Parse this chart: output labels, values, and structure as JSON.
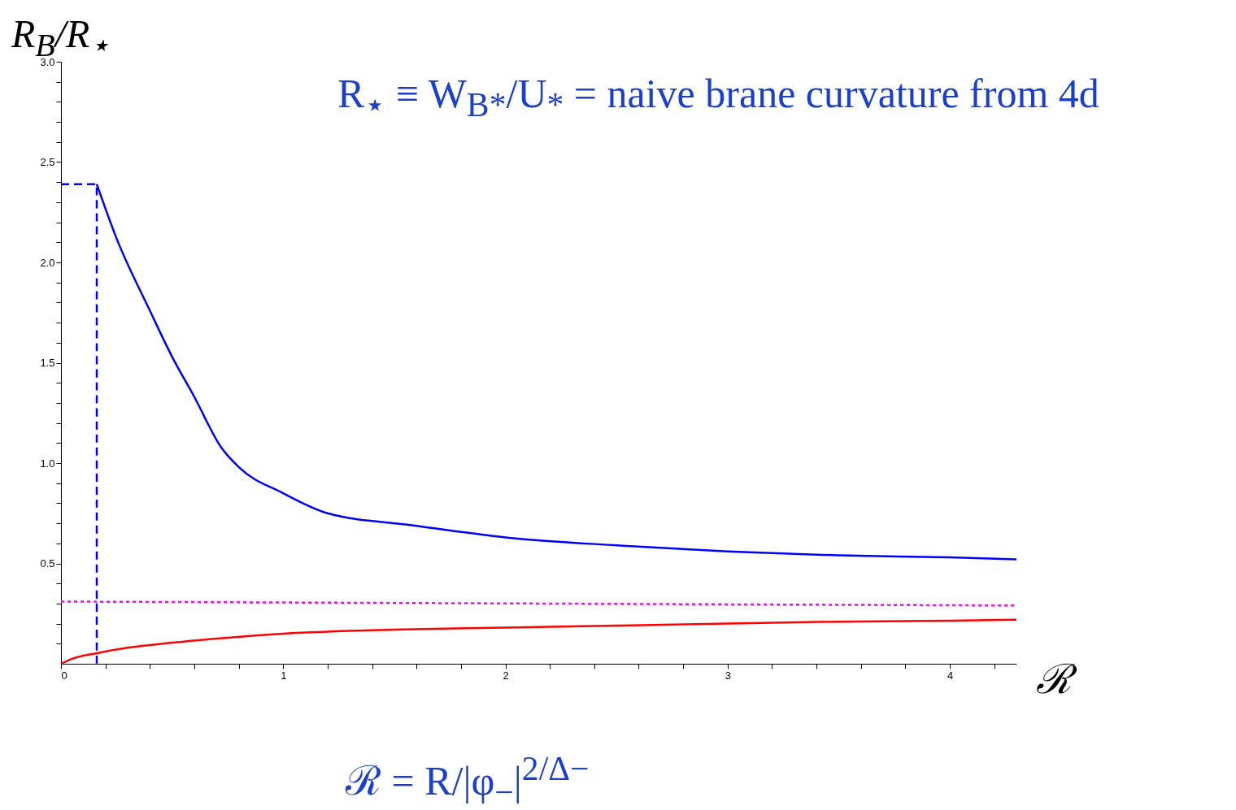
{
  "chart_data": {
    "type": "line",
    "xlabel": "ℛ",
    "ylabel": "R$_{B}$/R$_{⋆}$",
    "annotations": [
      "R$_{⋆}$ ≡ W$_{B*}$/U$_{*}$ = naive brane curvature from 4d",
      "ℛ = R/|φ$_{−}$|$^{2/Δ−}$"
    ],
    "xlim": [
      0,
      4.3
    ],
    "ylim": [
      0,
      3
    ],
    "xticks": [
      0,
      {
        "value": 0.2,
        "label": null
      },
      {
        "value": 0.4,
        "label": null
      },
      {
        "value": 0.6,
        "label": null
      },
      {
        "value": 0.8,
        "label": null
      },
      1,
      {
        "value": 1.2,
        "label": null
      },
      {
        "value": 1.4,
        "label": null
      },
      {
        "value": 1.6,
        "label": null
      },
      {
        "value": 1.8,
        "label": null
      },
      2,
      {
        "value": 2.2,
        "label": null
      },
      {
        "value": 2.4,
        "label": null
      },
      {
        "value": 2.6,
        "label": null
      },
      {
        "value": 2.8,
        "label": null
      },
      3,
      {
        "value": 3.2,
        "label": null
      },
      {
        "value": 3.4,
        "label": null
      },
      {
        "value": 3.6,
        "label": null
      },
      {
        "value": 3.8,
        "label": null
      },
      4,
      {
        "value": 4.2,
        "label": null
      }
    ],
    "yticks": [
      {
        "value": 0.1,
        "label": null
      },
      {
        "value": 0.2,
        "label": null
      },
      {
        "value": 0.3,
        "label": null
      },
      {
        "value": 0.4,
        "label": null
      },
      0.5,
      {
        "value": 0.6,
        "label": null
      },
      {
        "value": 0.7,
        "label": null
      },
      {
        "value": 0.8,
        "label": null
      },
      {
        "value": 0.9,
        "label": null
      },
      {
        "value": 1,
        "label": "1.0"
      },
      {
        "value": 1.1,
        "label": null
      },
      {
        "value": 1.2,
        "label": null
      },
      {
        "value": 1.3,
        "label": null
      },
      {
        "value": 1.4,
        "label": null
      },
      1.5,
      {
        "value": 1.6,
        "label": null
      },
      {
        "value": 1.7,
        "label": null
      },
      {
        "value": 1.8,
        "label": null
      },
      {
        "value": 1.9,
        "label": null
      },
      {
        "value": 2,
        "label": "2.0"
      },
      {
        "value": 2.1,
        "label": null
      },
      {
        "value": 2.2,
        "label": null
      },
      {
        "value": 2.3,
        "label": null
      },
      {
        "value": 2.4,
        "label": null
      },
      2.5,
      {
        "value": 2.6,
        "label": null
      },
      {
        "value": 2.7,
        "label": null
      },
      {
        "value": 2.8,
        "label": null
      },
      {
        "value": 2.9,
        "label": null
      },
      {
        "value": 3,
        "label": "3.0"
      }
    ],
    "grid": false,
    "legend": false,
    "series": [
      {
        "color": "#0000ff",
        "line_style": "solid",
        "x": [
          0.161,
          0.25,
          0.4,
          0.5,
          0.6,
          0.72,
          0.8,
          1.0,
          1.2,
          1.58,
          2.0,
          2.5,
          3.0,
          3.5,
          4.0,
          4.3
        ],
        "values": [
          2.39,
          2.12,
          1.76,
          1.53,
          1.33,
          1.08,
          0.98,
          0.85,
          0.75,
          0.69,
          0.63,
          0.59,
          0.56,
          0.54,
          0.53,
          0.52
        ]
      },
      {
        "color": "#0000ff",
        "line_style": "dashed",
        "x": [
          0,
          0.161,
          0.161
        ],
        "values": [
          2.39,
          2.39,
          0
        ]
      },
      {
        "color": "#ff00ff",
        "line_style": "dotted",
        "x": [
          0,
          4.3
        ],
        "values": [
          0.31,
          0.29
        ]
      },
      {
        "color": "#ff0000",
        "line_style": "solid",
        "x": [
          0,
          0.05,
          0.161,
          0.3,
          0.5,
          0.75,
          1.0,
          1.5,
          2.0,
          2.5,
          3.0,
          3.5,
          4.0,
          4.3
        ],
        "values": [
          0,
          0.025,
          0.053,
          0.08,
          0.105,
          0.13,
          0.15,
          0.17,
          0.18,
          0.19,
          0.2,
          0.21,
          0.215,
          0.22
        ]
      }
    ]
  }
}
